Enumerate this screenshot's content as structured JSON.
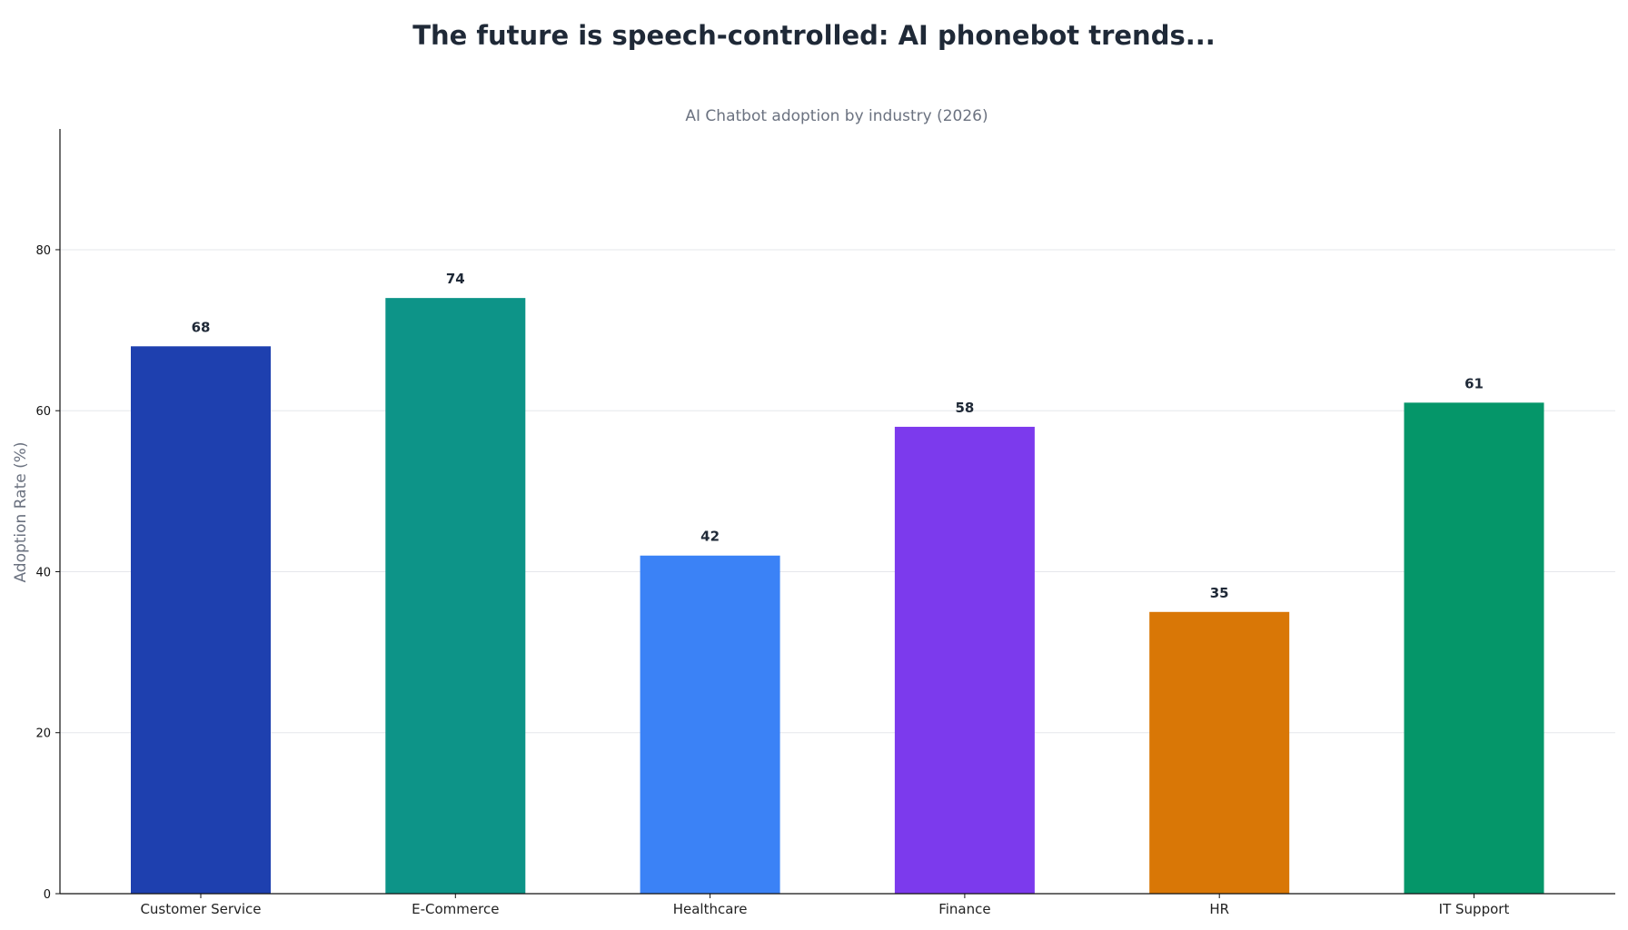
{
  "page": {
    "title": "The future is speech-controlled: AI phonebot trends..."
  },
  "chart_data": {
    "type": "bar",
    "title": "AI Chatbot adoption by industry (2026)",
    "xlabel": "",
    "ylabel": "Adoption Rate (%)",
    "categories": [
      "Customer Service",
      "E-Commerce",
      "Healthcare",
      "Finance",
      "HR",
      "IT Support"
    ],
    "values": [
      68,
      74,
      42,
      58,
      35,
      61
    ],
    "colors": [
      "#1e40af",
      "#0d9488",
      "#3b82f6",
      "#7c3aed",
      "#d97706",
      "#059669"
    ],
    "ylim": [
      0,
      95
    ],
    "yticks": [
      0,
      20,
      40,
      60,
      80
    ],
    "grid": "horizontal",
    "data_labels": true,
    "legend": "none"
  }
}
